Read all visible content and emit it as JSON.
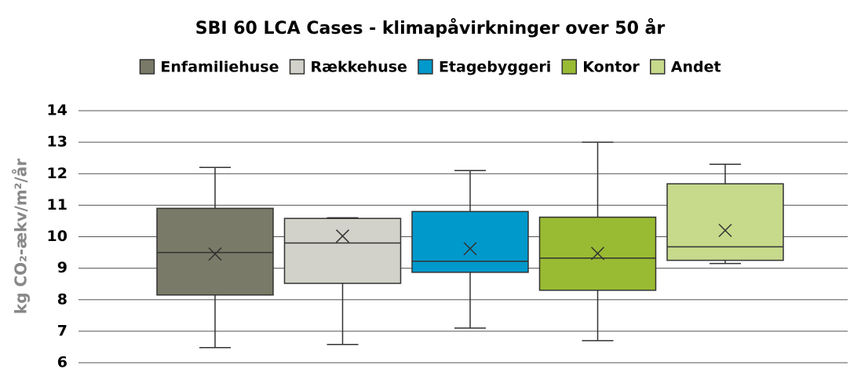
{
  "chart_data": {
    "type": "box",
    "title": "SBI 60 LCA Cases - klimapåvirkninger over 50 år",
    "y_label": "kg CO₂-ækv/m²/år",
    "ylim": [
      6,
      14
    ],
    "yticks": [
      6,
      7,
      8,
      9,
      10,
      11,
      12,
      13,
      14
    ],
    "grid": true,
    "legend": "top",
    "series": [
      {
        "name": "Enfamiliehuse",
        "color": "#7a7a68",
        "min": 6.48,
        "q1": 8.15,
        "median": 9.5,
        "q3": 10.9,
        "max": 12.2,
        "mean": 9.45
      },
      {
        "name": "Rækkehuse",
        "color": "#d2d2ca",
        "min": 6.58,
        "q1": 8.52,
        "median": 9.8,
        "q3": 10.58,
        "max": 10.6,
        "mean": 10.02
      },
      {
        "name": "Etagebyggeri",
        "color": "#0099cc",
        "min": 7.1,
        "q1": 8.87,
        "median": 9.22,
        "q3": 10.8,
        "max": 12.1,
        "mean": 9.62
      },
      {
        "name": "Kontor",
        "color": "#99bb33",
        "min": 6.7,
        "q1": 8.3,
        "median": 9.32,
        "q3": 10.62,
        "max": 13.0,
        "mean": 9.47
      },
      {
        "name": "Andet",
        "color": "#c7da8b",
        "min": 9.15,
        "q1": 9.25,
        "median": 9.68,
        "q3": 11.68,
        "max": 12.3,
        "mean": 10.2
      }
    ]
  }
}
